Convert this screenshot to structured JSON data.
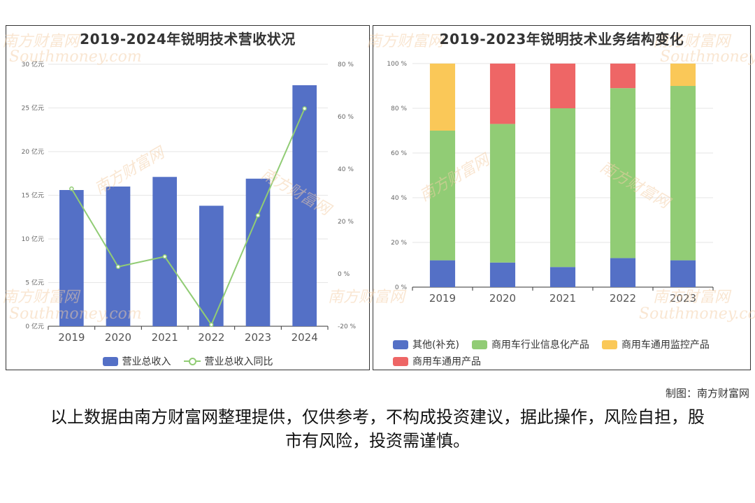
{
  "colors": {
    "bar_blue": "#5470c6",
    "line_green": "#91cc75",
    "other": "#5470c6",
    "industry_info": "#91cc75",
    "general_monitor": "#fac858",
    "general_products": "#ee6666"
  },
  "watermark": {
    "cn": "南方财富网",
    "en": "Southmoney.com"
  },
  "chart_data": [
    {
      "type": "bar",
      "title": "2019-2024年锐明技术营收状况",
      "categories": [
        "2019",
        "2020",
        "2021",
        "2022",
        "2023",
        "2024"
      ],
      "y_left": {
        "ylim": [
          0,
          30
        ],
        "ticks": [
          0,
          5,
          10,
          15,
          20,
          25,
          30
        ],
        "unit": "亿元"
      },
      "y_right": {
        "ylim": [
          -20,
          80
        ],
        "ticks": [
          -20,
          0,
          20,
          40,
          60,
          80
        ],
        "unit": "%"
      },
      "series": [
        {
          "name": "营业总收入",
          "kind": "bar",
          "axis": "left",
          "values": [
            15.6,
            16.0,
            17.1,
            13.8,
            16.9,
            27.6
          ]
        },
        {
          "name": "营业总收入同比",
          "kind": "line",
          "axis": "right",
          "values": [
            32.5,
            2.7,
            6.6,
            -19.4,
            22.3,
            63.1
          ]
        }
      ],
      "legend": [
        "营业总收入",
        "营业总收入同比"
      ],
      "legend_position": "bottom"
    },
    {
      "type": "bar",
      "stacked": true,
      "title": "2019-2023年锐明技术业务结构变化",
      "categories": [
        "2019",
        "2020",
        "2021",
        "2022",
        "2023"
      ],
      "y": {
        "ylim": [
          0,
          100
        ],
        "ticks": [
          0,
          20,
          40,
          60,
          80,
          100
        ],
        "unit": "%"
      },
      "series": [
        {
          "name": "其他(补充)",
          "values": [
            12,
            11,
            9,
            13,
            12
          ]
        },
        {
          "name": "商用车行业信息化产品",
          "values": [
            58,
            62,
            71,
            76,
            78
          ]
        },
        {
          "name": "商用车通用监控产品",
          "values": [
            30,
            0,
            0,
            0,
            10
          ]
        },
        {
          "name": "商用车通用产品",
          "values": [
            0,
            27,
            20,
            11,
            0
          ]
        }
      ],
      "legend": [
        "其他(补充)",
        "商用车行业信息化产品",
        "商用车通用监控产品",
        "商用车通用产品"
      ],
      "legend_position": "bottom"
    }
  ],
  "footer": {
    "credit": "制图：南方财富网",
    "disclaimer": "以上数据由南方财富网整理提供，仅供参考，不构成投资建议，据此操作，风险自担，股市有风险，投资需谨慎。"
  }
}
